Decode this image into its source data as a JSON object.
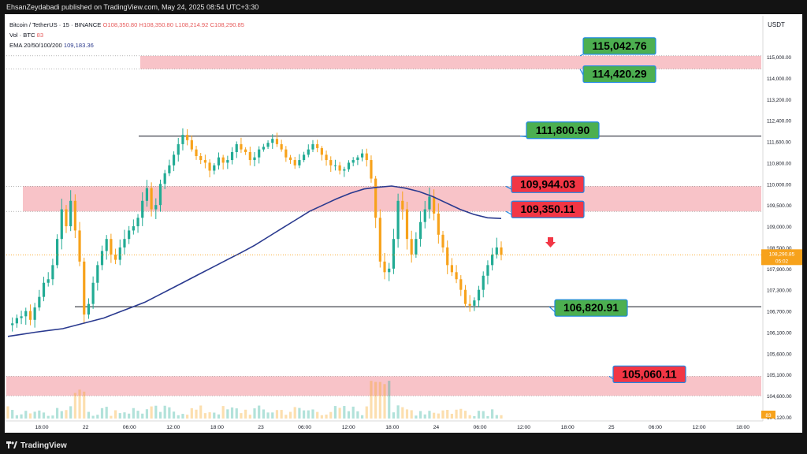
{
  "header": {
    "published_by": "EhsanZeydabadi published on TradingView.com, May 24, 2025 08:54 UTC+3:30"
  },
  "legend": {
    "symbol": "Bitcoin / TetherUS · 15 · BINANCE",
    "ohlc": [
      "O108,350.80",
      "H108,350.80",
      "L108,214.92",
      "C108,290.85"
    ],
    "vol_label": "Vol · BTC",
    "vol_value": "83",
    "ema_label": "EMA 20/50/100/200",
    "ema_value": "109,183.36"
  },
  "footer": {
    "brand": "TradingView"
  },
  "colors": {
    "bull": "#22ab94",
    "bear": "#f7a21b",
    "zone": "#f8c3c8",
    "ema": "#2a3a8f",
    "green_label": "#4caf50",
    "red_label": "#f23645",
    "price_tag": "#f7a21b"
  },
  "chart_data": {
    "type": "candlestick",
    "currency": "USDT",
    "y_ticks": [
      "115,000.00",
      "114,000.00",
      "113,200.00",
      "112,400.00",
      "111,600.00",
      "110,800.00",
      "110,000.00",
      "109,500.00",
      "109,000.00",
      "108,500.00",
      "107,900.00",
      "107,300.00",
      "106,700.00",
      "106,100.00",
      "105,600.00",
      "105,100.00",
      "104,600.00",
      "104,120.00"
    ],
    "x_ticks": [
      "18:00",
      "22",
      "06:00",
      "12:00",
      "18:00",
      "23",
      "06:00",
      "12:00",
      "18:00",
      "24",
      "06:00",
      "12:00",
      "18:00",
      "25",
      "06:00",
      "12:00",
      "18:00"
    ],
    "last_price": "108,290.85",
    "countdown": "05:02",
    "volume_last": "83",
    "price_path": [
      106300,
      106350,
      106500,
      106550,
      106700,
      106450,
      106800,
      107100,
      107500,
      107600,
      108000,
      108700,
      109400,
      109000,
      109600,
      108900,
      108100,
      106600,
      106900,
      107500,
      108000,
      108400,
      108700,
      108300,
      108150,
      108500,
      108700,
      108900,
      109000,
      109200,
      109600,
      109900,
      109400,
      109500,
      110000,
      110400,
      110700,
      111100,
      111500,
      111850,
      111650,
      111300,
      111050,
      110900,
      110800,
      110500,
      110700,
      111000,
      110800,
      110900,
      111200,
      111500,
      111300,
      111200,
      110900,
      111000,
      111300,
      111400,
      111550,
      111700,
      111500,
      111300,
      111000,
      110900,
      110700,
      110900,
      111100,
      111300,
      111500,
      111350,
      111100,
      110900,
      110700,
      110700,
      110500,
      110550,
      110800,
      110900,
      111000,
      111150,
      110900,
      110200,
      109200,
      108100,
      107800,
      107900,
      108700,
      109600,
      109400,
      108700,
      108300,
      108700,
      109100,
      109400,
      109700,
      109300,
      108800,
      108500,
      108000,
      107800,
      107600,
      107300,
      106900,
      106850,
      107000,
      107300,
      107700,
      108000,
      108300,
      108500,
      108290
    ],
    "ema_path": [
      106000,
      106050,
      106100,
      106150,
      106200,
      106300,
      106400,
      106500,
      106650,
      106800,
      106950,
      107150,
      107350,
      107550,
      107750,
      107950,
      108150,
      108350,
      108550,
      108750,
      108950,
      109150,
      109350,
      109500,
      109650,
      109780,
      109880,
      109920,
      109950,
      109900,
      109820,
      109700,
      109550,
      109400,
      109280,
      109200,
      109183
    ],
    "levels": [
      {
        "label": "115,042.76",
        "type": "green",
        "value": 115042.76
      },
      {
        "label": "114,420.29",
        "type": "green",
        "value": 114420.29
      },
      {
        "label": "111,800.90",
        "type": "green",
        "value": 111800.9
      },
      {
        "label": "109,944.03",
        "type": "red",
        "value": 109944.03
      },
      {
        "label": "109,350.11",
        "type": "red",
        "value": 109350.11
      },
      {
        "label": "106,820.91",
        "type": "green",
        "value": 106820.91
      },
      {
        "label": "105,060.11",
        "type": "red",
        "value": 105060.11
      }
    ],
    "zones": [
      {
        "from": 114420.29,
        "to": 115042.76
      },
      {
        "from": 109350.11,
        "to": 109944.03
      },
      {
        "from": 104600,
        "to": 105060.11
      }
    ],
    "hlines": [
      111800.9,
      106820.91
    ],
    "grid": false
  }
}
